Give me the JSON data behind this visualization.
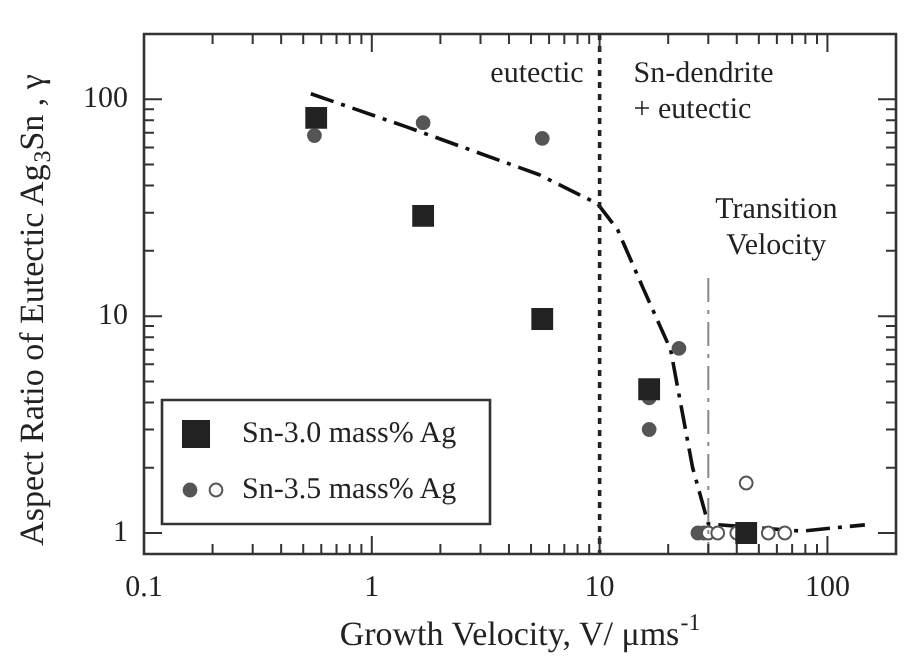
{
  "chart_data": {
    "type": "scatter",
    "xlabel": "Growth Velocity, V/ μms$^{-1}$",
    "ylabel": "Aspect Ratio of Eutectic Ag$_{3}$Sn , γ",
    "log": "xy",
    "xlim": [
      0.1,
      200
    ],
    "ylim": [
      0.8,
      200
    ],
    "xticks": [
      0.1,
      {
        "value": 0.2,
        "label": null
      },
      {
        "value": 0.3,
        "label": null
      },
      {
        "value": 0.4,
        "label": null
      },
      {
        "value": 0.5,
        "label": null
      },
      {
        "value": 0.6,
        "label": null
      },
      {
        "value": 0.7,
        "label": null
      },
      {
        "value": 0.8,
        "label": null
      },
      {
        "value": 0.9,
        "label": null
      },
      1,
      {
        "value": 2,
        "label": null
      },
      {
        "value": 3,
        "label": null
      },
      {
        "value": 4,
        "label": null
      },
      {
        "value": 5,
        "label": null
      },
      {
        "value": 6,
        "label": null
      },
      {
        "value": 7,
        "label": null
      },
      {
        "value": 8,
        "label": null
      },
      {
        "value": 9,
        "label": null
      },
      10,
      {
        "value": 20,
        "label": null
      },
      {
        "value": 30,
        "label": null
      },
      {
        "value": 40,
        "label": null
      },
      {
        "value": 50,
        "label": null
      },
      {
        "value": 60,
        "label": null
      },
      {
        "value": 70,
        "label": null
      },
      {
        "value": 80,
        "label": null
      },
      {
        "value": 90,
        "label": null
      },
      100
    ],
    "yticks": [
      1,
      {
        "value": 2,
        "label": null
      },
      {
        "value": 3,
        "label": null
      },
      {
        "value": 4,
        "label": null
      },
      {
        "value": 5,
        "label": null
      },
      {
        "value": 6,
        "label": null
      },
      {
        "value": 7,
        "label": null
      },
      {
        "value": 8,
        "label": null
      },
      {
        "value": 9,
        "label": null
      },
      10,
      {
        "value": 20,
        "label": null
      },
      {
        "value": 30,
        "label": null
      },
      {
        "value": 40,
        "label": null
      },
      {
        "value": 50,
        "label": null
      },
      {
        "value": 60,
        "label": null
      },
      {
        "value": 70,
        "label": null
      },
      {
        "value": 80,
        "label": null
      },
      {
        "value": 90,
        "label": null
      },
      100
    ],
    "grid": false,
    "legend": "bottom left",
    "series": [
      {
        "name": "Sn-3.0 mass% Ag",
        "color": "#222222",
        "marker": "square",
        "x": [
          0.57,
          1.68,
          5.6,
          16.5,
          44
        ],
        "values": [
          82,
          29,
          9.7,
          4.6,
          1
        ]
      },
      {
        "name": "Sn-3.5 mass% Ag",
        "color": "#555555",
        "marker": "circle",
        "x": [
          0.56,
          1.68,
          5.6,
          22.3,
          16.5,
          16.5,
          27,
          28.7,
          30,
          33,
          40,
          44,
          55,
          65
        ],
        "values": [
          68,
          78,
          66,
          7.1,
          4.2,
          3.0,
          1,
          1,
          1,
          1,
          1,
          1.7,
          1,
          1
        ],
        "colors": [
          "#555555",
          "#555555",
          "#555555",
          "#555555",
          "#555555",
          "#555555",
          "#555555",
          "#555555",
          "#ffffff",
          "#ffffff",
          "#ffffff",
          "#ffffff",
          "#ffffff",
          "#ffffff"
        ]
      },
      {
        "type": "line",
        "color": "#111111",
        "marker": "none",
        "line_style": "dashed",
        "x": [
          0.54,
          1.4,
          5.4,
          9.8,
          12,
          15.5,
          20.5,
          25.6,
          30,
          77,
          146
        ],
        "values": [
          106,
          75,
          45,
          33,
          25,
          13.5,
          7,
          2,
          1.1,
          1.02,
          1.09
        ]
      }
    ],
    "ref_lines": [
      {
        "axis": "x",
        "value": 10,
        "color": "#222222",
        "line_style": "dotted"
      },
      {
        "axis": "x",
        "value": 30,
        "label": "Transition Velocity",
        "color": "#888888",
        "line_style": "dashed"
      }
    ],
    "annotations": [
      "eutectic",
      "Sn-dendrite\n+ eutectic"
    ]
  }
}
